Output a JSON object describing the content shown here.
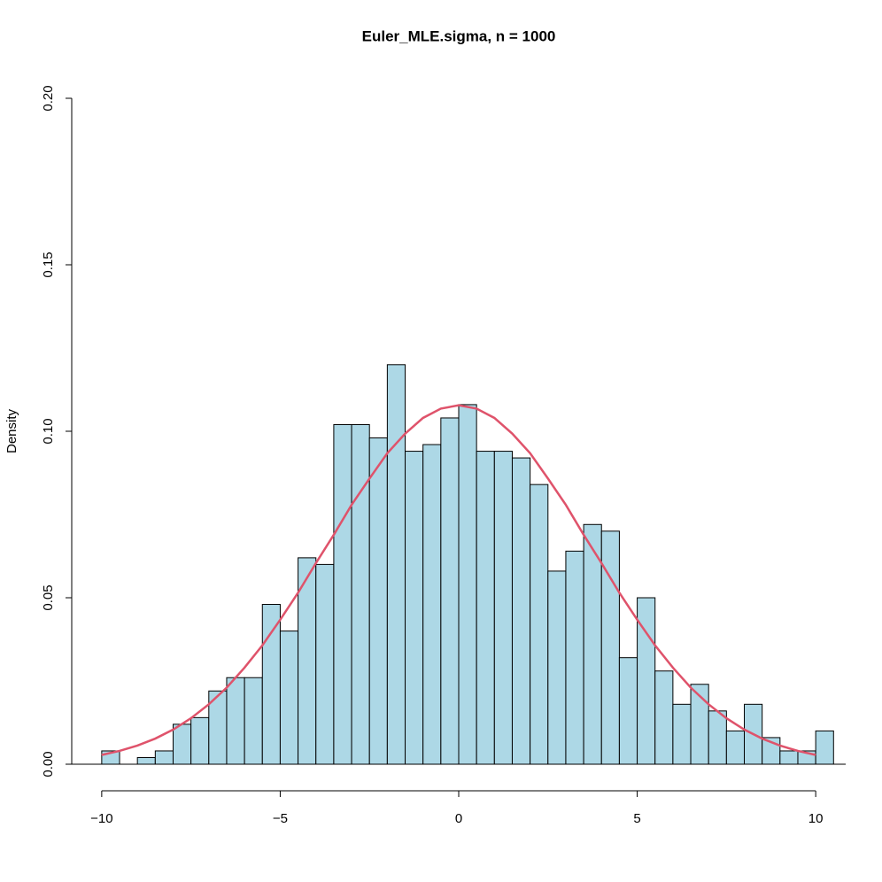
{
  "chart_data": {
    "type": "histogram",
    "title": "Euler_MLE.sigma, n = 1000",
    "ylabel": "Density",
    "bins": [
      -10,
      -9.5,
      -9,
      -8.5,
      -8,
      -7.5,
      -7,
      -6.5,
      -6,
      -5.5,
      -5,
      -4.5,
      -4,
      -3.5,
      -3,
      -2.5,
      -2,
      -1.5,
      -1,
      -0.5,
      0,
      0.5,
      1,
      1.5,
      2,
      2.5,
      3,
      3.5,
      4,
      4.5,
      5,
      5.5,
      6,
      6.5,
      7,
      7.5,
      8,
      8.5,
      9,
      9.5,
      10,
      10.5
    ],
    "values": [
      0.004,
      0,
      0.002,
      0.004,
      0.012,
      0.014,
      0.022,
      0.026,
      0.026,
      0.048,
      0.04,
      0.062,
      0.06,
      0.102,
      0.102,
      0.098,
      0.12,
      0.094,
      0.096,
      0.104,
      0.108,
      0.094,
      0.094,
      0.092,
      0.084,
      0.058,
      0.064,
      0.072,
      0.07,
      0.032,
      0.05,
      0.028,
      0.018,
      0.024,
      0.016,
      0.01,
      0.018,
      0.008,
      0.004,
      0.004,
      0.01
    ],
    "color": "#add8e6",
    "curve": {
      "color": "#df536b",
      "x": [
        -10,
        -9.5,
        -9,
        -8.5,
        -8,
        -7.5,
        -7,
        -6.5,
        -6,
        -5.5,
        -5,
        -4.5,
        -4,
        -3.5,
        -3,
        -2.5,
        -2,
        -1.5,
        -1,
        -0.5,
        0,
        0.5,
        1,
        1.5,
        2,
        2.5,
        3,
        3.5,
        4,
        4.5,
        5,
        5.5,
        6,
        6.5,
        7,
        7.5,
        8,
        8.5,
        9,
        9.5,
        10
      ],
      "y": [
        0.0028,
        0.004,
        0.0056,
        0.0077,
        0.0104,
        0.0138,
        0.018,
        0.023,
        0.029,
        0.0357,
        0.0434,
        0.0515,
        0.0604,
        0.0689,
        0.0779,
        0.0858,
        0.0934,
        0.0993,
        0.104,
        0.1068,
        0.1078,
        0.1068,
        0.104,
        0.0993,
        0.0934,
        0.0858,
        0.0779,
        0.0689,
        0.0604,
        0.0515,
        0.0434,
        0.0357,
        0.029,
        0.023,
        0.018,
        0.0138,
        0.0104,
        0.0077,
        0.0056,
        0.004,
        0.0028
      ]
    },
    "xlim": [
      -10.84,
      10.84
    ],
    "ylim": [
      0,
      0.2
    ],
    "xticks": [
      {
        "value": -10,
        "label": "−10"
      },
      {
        "value": -5,
        "label": "−5"
      },
      0,
      5,
      10
    ],
    "yticks": [
      {
        "value": 0,
        "label": "0.00"
      },
      {
        "value": 0.05,
        "label": "0.05"
      },
      {
        "value": 0.1,
        "label": "0.10"
      },
      {
        "value": 0.15,
        "label": "0.15"
      },
      {
        "value": 0.2,
        "label": "0.20"
      }
    ]
  }
}
